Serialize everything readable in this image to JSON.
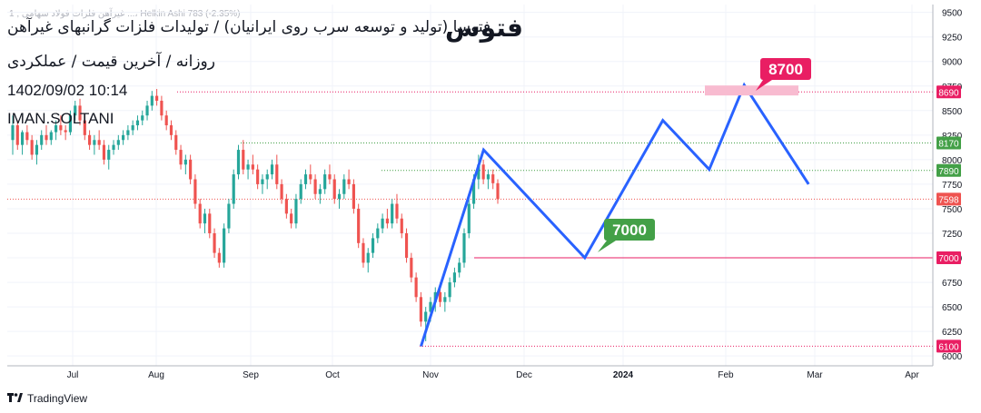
{
  "header": {
    "faint_symbol_text": "1 , غیرآهن فلزات فولاد سهامی ...، Helkin Ashi  783 (-2.35%)",
    "watermark": "فتوس",
    "title": "فتوسا (تولید و توسعه سرب روی ایرانیان) / تولیدات فلزات گرانبهای غیرآهن",
    "subtitle": "روزانه / آخرین قیمت / عملکردی",
    "datetime": "1402/09/02 10:14",
    "author": "IMAN.SOLTANI"
  },
  "branding": {
    "logo_icon": "tradingview-logo-icon",
    "name": "TradingView"
  },
  "colors": {
    "up": "#26a69a",
    "down": "#ef5350",
    "projection": "#2962ff",
    "resistance": "#e91e63",
    "support_green": "#43a047",
    "box_green": "#43a047",
    "box_pink": "#e91e63"
  },
  "chart_data": {
    "type": "candlestick",
    "title": "",
    "xlabel": "",
    "ylabel": "",
    "ylim": [
      5900,
      9580
    ],
    "y_ticks": [
      6000,
      6250,
      6500,
      6750,
      7000,
      7250,
      7500,
      7750,
      8000,
      8250,
      8500,
      8750,
      9000,
      9250,
      9500
    ],
    "x_ticks": [
      "Jul",
      "Aug",
      "Sep",
      "Oct",
      "Nov",
      "Dec",
      "2024",
      "Feb",
      "Mar",
      "Apr"
    ],
    "price_levels": [
      {
        "label": "8690",
        "value": 8690,
        "color": "#e91e63",
        "style": "dotted"
      },
      {
        "label": "8170",
        "value": 8170,
        "color": "#43a047",
        "style": "dotted"
      },
      {
        "label": "7890",
        "value": 7890,
        "color": "#43a047",
        "style": "dotted"
      },
      {
        "label": "7598",
        "value": 7598,
        "color": "#ef5350",
        "style": "dotted",
        "current": true
      },
      {
        "label": "7000",
        "value": 7000,
        "color": "#e91e63",
        "style": "solid"
      },
      {
        "label": "6100",
        "value": 6100,
        "color": "#e91e63",
        "style": "dotted"
      }
    ],
    "annotations": [
      {
        "text": "8700",
        "value": 8700
      },
      {
        "text": "7000",
        "value": 7000
      }
    ],
    "projection_path": [
      {
        "date": "2023-10-29",
        "value": 6100
      },
      {
        "date": "2023-11-18",
        "value": 8100
      },
      {
        "date": "2023-12-20",
        "value": 7000
      },
      {
        "date": "2024-01-13",
        "value": 8400
      },
      {
        "date": "2024-01-27",
        "value": 7900
      },
      {
        "date": "2024-02-07",
        "value": 8760
      },
      {
        "date": "2024-02-28",
        "value": 7750
      }
    ],
    "series": [
      {
        "ohlc": [
          [
            8200,
            8450,
            8050,
            8350
          ],
          [
            8350,
            8400,
            8100,
            8150
          ],
          [
            8150,
            8300,
            8050,
            8280
          ],
          [
            8280,
            8350,
            8150,
            8200
          ],
          [
            8200,
            8250,
            8000,
            8050
          ],
          [
            8050,
            8200,
            7950,
            8150
          ],
          [
            8150,
            8300,
            8100,
            8250
          ],
          [
            8250,
            8350,
            8150,
            8200
          ],
          [
            8200,
            8300,
            8150,
            8280
          ],
          [
            8280,
            8400,
            8200,
            8350
          ],
          [
            8350,
            8450,
            8250,
            8300
          ],
          [
            8300,
            8350,
            8200,
            8280
          ],
          [
            8280,
            8500,
            8250,
            8450
          ],
          [
            8450,
            8600,
            8400,
            8550
          ],
          [
            8550,
            8620,
            8350,
            8400
          ],
          [
            8400,
            8450,
            8200,
            8250
          ],
          [
            8250,
            8300,
            8100,
            8150
          ],
          [
            8150,
            8250,
            8050,
            8200
          ],
          [
            8200,
            8300,
            8100,
            8150
          ],
          [
            8150,
            8200,
            7950,
            8000
          ],
          [
            8000,
            8150,
            7900,
            8100
          ],
          [
            8100,
            8200,
            8050,
            8150
          ],
          [
            8150,
            8250,
            8100,
            8200
          ],
          [
            8200,
            8300,
            8150,
            8250
          ],
          [
            8250,
            8350,
            8200,
            8300
          ],
          [
            8300,
            8400,
            8250,
            8350
          ],
          [
            8350,
            8450,
            8300,
            8400
          ],
          [
            8400,
            8500,
            8350,
            8450
          ],
          [
            8450,
            8600,
            8400,
            8550
          ],
          [
            8550,
            8700,
            8500,
            8650
          ],
          [
            8650,
            8720,
            8550,
            8600
          ],
          [
            8600,
            8650,
            8400,
            8450
          ],
          [
            8450,
            8500,
            8300,
            8350
          ],
          [
            8350,
            8400,
            8200,
            8250
          ],
          [
            8250,
            8300,
            8050,
            8100
          ],
          [
            8100,
            8150,
            7900,
            7950
          ],
          [
            7950,
            8050,
            7850,
            8000
          ],
          [
            8000,
            8050,
            7750,
            7800
          ],
          [
            7800,
            7850,
            7500,
            7550
          ],
          [
            7550,
            7600,
            7300,
            7350
          ],
          [
            7350,
            7500,
            7250,
            7450
          ],
          [
            7450,
            7500,
            7200,
            7250
          ],
          [
            7250,
            7300,
            7000,
            7050
          ],
          [
            7050,
            7100,
            6900,
            6950
          ],
          [
            6950,
            7350,
            6900,
            7300
          ],
          [
            7300,
            7600,
            7250,
            7550
          ],
          [
            7550,
            7900,
            7500,
            7850
          ],
          [
            7850,
            8150,
            7800,
            8100
          ],
          [
            8100,
            8200,
            7850,
            7900
          ],
          [
            7900,
            8000,
            7800,
            7950
          ],
          [
            7950,
            8050,
            7850,
            7900
          ],
          [
            7900,
            7950,
            7700,
            7750
          ],
          [
            7750,
            7850,
            7650,
            7800
          ],
          [
            7800,
            7900,
            7700,
            7850
          ],
          [
            7850,
            8000,
            7800,
            7950
          ],
          [
            7950,
            8050,
            7700,
            7750
          ],
          [
            7750,
            7800,
            7550,
            7600
          ],
          [
            7600,
            7650,
            7400,
            7450
          ],
          [
            7450,
            7500,
            7300,
            7350
          ],
          [
            7350,
            7650,
            7300,
            7600
          ],
          [
            7600,
            7800,
            7550,
            7750
          ],
          [
            7750,
            7900,
            7700,
            7850
          ],
          [
            7850,
            7950,
            7750,
            7800
          ],
          [
            7800,
            7850,
            7600,
            7650
          ],
          [
            7650,
            7750,
            7550,
            7700
          ],
          [
            7700,
            7900,
            7650,
            7850
          ],
          [
            7850,
            7950,
            7750,
            7800
          ],
          [
            7800,
            7850,
            7550,
            7600
          ],
          [
            7600,
            7700,
            7500,
            7650
          ],
          [
            7650,
            7850,
            7600,
            7800
          ],
          [
            7800,
            7900,
            7700,
            7750
          ],
          [
            7750,
            7800,
            7450,
            7500
          ],
          [
            7500,
            7550,
            7100,
            7150
          ],
          [
            7150,
            7200,
            6900,
            6950
          ],
          [
            6950,
            7100,
            6850,
            7050
          ],
          [
            7050,
            7250,
            7000,
            7200
          ],
          [
            7200,
            7350,
            7150,
            7300
          ],
          [
            7300,
            7450,
            7250,
            7400
          ],
          [
            7400,
            7500,
            7300,
            7350
          ],
          [
            7350,
            7600,
            7300,
            7550
          ],
          [
            7550,
            7650,
            7350,
            7400
          ],
          [
            7400,
            7450,
            7200,
            7250
          ],
          [
            7250,
            7300,
            6950,
            7000
          ],
          [
            7000,
            7050,
            6750,
            6800
          ],
          [
            6800,
            6850,
            6550,
            6600
          ],
          [
            6600,
            6650,
            6300,
            6350
          ],
          [
            6350,
            6500,
            6150,
            6450
          ],
          [
            6450,
            6600,
            6350,
            6550
          ],
          [
            6550,
            6700,
            6450,
            6650
          ],
          [
            6650,
            6750,
            6500,
            6550
          ],
          [
            6550,
            6650,
            6450,
            6600
          ],
          [
            6600,
            6800,
            6550,
            6750
          ],
          [
            6750,
            6900,
            6700,
            6850
          ],
          [
            6850,
            7000,
            6800,
            6950
          ],
          [
            6950,
            7300,
            6900,
            7250
          ],
          [
            7250,
            7600,
            7200,
            7550
          ],
          [
            7550,
            7850,
            7500,
            7800
          ],
          [
            7800,
            8050,
            7700,
            7950
          ],
          [
            7950,
            8000,
            7750,
            7800
          ],
          [
            7800,
            7900,
            7700,
            7850
          ],
          [
            7850,
            7900,
            7700,
            7760
          ],
          [
            7760,
            7800,
            7550,
            7598
          ]
        ]
      }
    ]
  }
}
